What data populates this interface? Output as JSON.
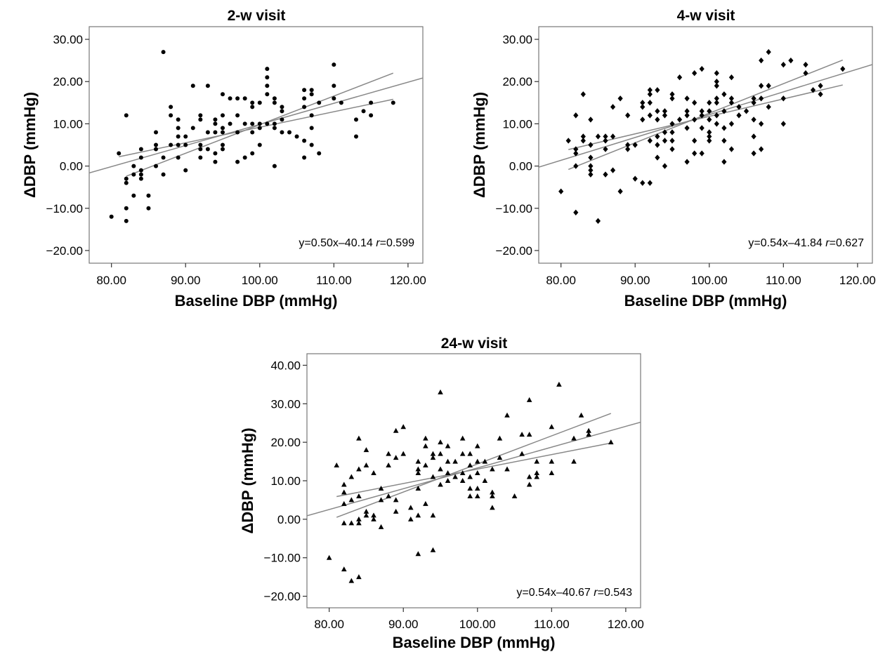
{
  "chart_data": [
    {
      "type": "scatter",
      "title": "2-w visit",
      "xlabel": "Baseline DBP (mmHg)",
      "ylabel": "ΔDBP (mmHg)",
      "xlim": [
        77,
        122
      ],
      "ylim": [
        -23,
        33
      ],
      "xticks": [
        "80.00",
        "90.00",
        "100.00",
        "110.00",
        "120.00"
      ],
      "yticks": [
        "-20.00",
        "-10.00",
        "0.00",
        "10.00",
        "20.00",
        "30.00"
      ],
      "marker": "circle",
      "annotation": {
        "text": "y=0.50x–40.14 ",
        "r_label": "r",
        "r_text": "=0.599"
      },
      "regression": {
        "slope": 0.5,
        "intercept": -40.14
      },
      "ci_lines": [
        {
          "x": [
            82,
            118
          ],
          "y": [
            -2.4,
            22.0
          ]
        },
        {
          "x": [
            81,
            118
          ],
          "y": [
            2.2,
            15.8
          ]
        }
      ],
      "points": [
        [
          80,
          -12
        ],
        [
          81,
          3
        ],
        [
          82,
          12
        ],
        [
          82,
          -3
        ],
        [
          82,
          -4
        ],
        [
          82,
          -10
        ],
        [
          82,
          -13
        ],
        [
          83,
          -2
        ],
        [
          83,
          -7
        ],
        [
          83,
          0
        ],
        [
          84,
          4
        ],
        [
          84,
          2
        ],
        [
          84,
          -1
        ],
        [
          84,
          -2
        ],
        [
          84,
          -3
        ],
        [
          85,
          -7
        ],
        [
          85,
          -10
        ],
        [
          86,
          0
        ],
        [
          86,
          4
        ],
        [
          86,
          5
        ],
        [
          86,
          8
        ],
        [
          87,
          27
        ],
        [
          87,
          2
        ],
        [
          87,
          -2
        ],
        [
          88,
          14
        ],
        [
          88,
          12
        ],
        [
          88,
          5
        ],
        [
          89,
          11
        ],
        [
          89,
          9
        ],
        [
          89,
          7
        ],
        [
          89,
          5
        ],
        [
          89,
          2
        ],
        [
          90,
          7
        ],
        [
          90,
          5
        ],
        [
          90,
          -1
        ],
        [
          91,
          19
        ],
        [
          91,
          9
        ],
        [
          92,
          11
        ],
        [
          92,
          12
        ],
        [
          92,
          5
        ],
        [
          92,
          4
        ],
        [
          92,
          2
        ],
        [
          93,
          19
        ],
        [
          93,
          8
        ],
        [
          93,
          4
        ],
        [
          94,
          11
        ],
        [
          94,
          10
        ],
        [
          94,
          8
        ],
        [
          94,
          3
        ],
        [
          94,
          1
        ],
        [
          95,
          17
        ],
        [
          95,
          12
        ],
        [
          95,
          9
        ],
        [
          95,
          8
        ],
        [
          95,
          5
        ],
        [
          95,
          4
        ],
        [
          96,
          16
        ],
        [
          96,
          10
        ],
        [
          97,
          16
        ],
        [
          97,
          12
        ],
        [
          97,
          8
        ],
        [
          97,
          1
        ],
        [
          98,
          16
        ],
        [
          98,
          10
        ],
        [
          98,
          2
        ],
        [
          99,
          15
        ],
        [
          99,
          14
        ],
        [
          99,
          10
        ],
        [
          99,
          8
        ],
        [
          99,
          3
        ],
        [
          100,
          15
        ],
        [
          100,
          10
        ],
        [
          100,
          9
        ],
        [
          100,
          5
        ],
        [
          101,
          23
        ],
        [
          101,
          21
        ],
        [
          101,
          19
        ],
        [
          101,
          17
        ],
        [
          101,
          10
        ],
        [
          102,
          16
        ],
        [
          102,
          15
        ],
        [
          102,
          10
        ],
        [
          102,
          9
        ],
        [
          102,
          0
        ],
        [
          103,
          14
        ],
        [
          103,
          13
        ],
        [
          103,
          11
        ],
        [
          103,
          8
        ],
        [
          104,
          8
        ],
        [
          105,
          7
        ],
        [
          106,
          18
        ],
        [
          106,
          16
        ],
        [
          106,
          14
        ],
        [
          106,
          6
        ],
        [
          106,
          2
        ],
        [
          107,
          18
        ],
        [
          107,
          17
        ],
        [
          107,
          12
        ],
        [
          107,
          9
        ],
        [
          107,
          5
        ],
        [
          108,
          15
        ],
        [
          108,
          3
        ],
        [
          110,
          24
        ],
        [
          110,
          19
        ],
        [
          110,
          16
        ],
        [
          111,
          15
        ],
        [
          113,
          11
        ],
        [
          113,
          7
        ],
        [
          114,
          13
        ],
        [
          115,
          15
        ],
        [
          115,
          12
        ],
        [
          118,
          15
        ]
      ]
    },
    {
      "type": "scatter",
      "title": "4-w visit",
      "xlabel": "Baseline DBP (mmHg)",
      "ylabel": "ΔDBP (mmHg)",
      "xlim": [
        77,
        122
      ],
      "ylim": [
        -23,
        33
      ],
      "xticks": [
        "80.00",
        "90.00",
        "100.00",
        "110.00",
        "120.00"
      ],
      "yticks": [
        "-20.00",
        "-10.00",
        "0.00",
        "10.00",
        "20.00",
        "30.00"
      ],
      "marker": "diamond",
      "annotation": {
        "text": "y=0.54x–41.84 ",
        "r_label": "r",
        "r_text": "=0.627"
      },
      "regression": {
        "slope": 0.54,
        "intercept": -41.84
      },
      "ci_lines": [
        {
          "x": [
            81,
            118
          ],
          "y": [
            -0.8,
            25.1
          ]
        },
        {
          "x": [
            81,
            118
          ],
          "y": [
            3.9,
            19.2
          ]
        }
      ],
      "points": [
        [
          80,
          -6
        ],
        [
          81,
          6
        ],
        [
          82,
          12
        ],
        [
          82,
          4
        ],
        [
          82,
          3
        ],
        [
          82,
          0
        ],
        [
          82,
          -11
        ],
        [
          83,
          17
        ],
        [
          83,
          7
        ],
        [
          83,
          6
        ],
        [
          84,
          11
        ],
        [
          84,
          5
        ],
        [
          84,
          2
        ],
        [
          84,
          0
        ],
        [
          84,
          -1
        ],
        [
          84,
          -2
        ],
        [
          85,
          7
        ],
        [
          85,
          -13
        ],
        [
          86,
          7
        ],
        [
          86,
          6
        ],
        [
          86,
          4
        ],
        [
          86,
          -2
        ],
        [
          87,
          14
        ],
        [
          87,
          7
        ],
        [
          87,
          -1
        ],
        [
          88,
          16
        ],
        [
          88,
          -6
        ],
        [
          89,
          12
        ],
        [
          89,
          5
        ],
        [
          89,
          4
        ],
        [
          90,
          5
        ],
        [
          90,
          -3
        ],
        [
          91,
          15
        ],
        [
          91,
          14
        ],
        [
          91,
          11
        ],
        [
          91,
          -4
        ],
        [
          92,
          18
        ],
        [
          92,
          17
        ],
        [
          92,
          15
        ],
        [
          92,
          12
        ],
        [
          92,
          6
        ],
        [
          92,
          -4
        ],
        [
          93,
          18
        ],
        [
          93,
          13
        ],
        [
          93,
          11
        ],
        [
          93,
          7
        ],
        [
          93,
          5
        ],
        [
          93,
          2
        ],
        [
          94,
          13
        ],
        [
          94,
          12
        ],
        [
          94,
          8
        ],
        [
          94,
          6
        ],
        [
          94,
          0
        ],
        [
          95,
          17
        ],
        [
          95,
          16
        ],
        [
          95,
          10
        ],
        [
          95,
          8
        ],
        [
          95,
          6
        ],
        [
          95,
          4
        ],
        [
          96,
          21
        ],
        [
          96,
          11
        ],
        [
          97,
          16
        ],
        [
          97,
          13
        ],
        [
          97,
          12
        ],
        [
          97,
          9
        ],
        [
          97,
          1
        ],
        [
          98,
          22
        ],
        [
          98,
          15
        ],
        [
          98,
          11
        ],
        [
          98,
          6
        ],
        [
          98,
          3
        ],
        [
          99,
          23
        ],
        [
          99,
          13
        ],
        [
          99,
          12
        ],
        [
          99,
          9
        ],
        [
          99,
          3
        ],
        [
          100,
          15
        ],
        [
          100,
          13
        ],
        [
          100,
          11
        ],
        [
          100,
          8
        ],
        [
          100,
          7
        ],
        [
          100,
          6
        ],
        [
          101,
          22
        ],
        [
          101,
          20
        ],
        [
          101,
          19
        ],
        [
          101,
          16
        ],
        [
          101,
          15
        ],
        [
          101,
          12
        ],
        [
          101,
          10
        ],
        [
          102,
          17
        ],
        [
          102,
          13
        ],
        [
          102,
          9
        ],
        [
          102,
          6
        ],
        [
          102,
          1
        ],
        [
          103,
          21
        ],
        [
          103,
          16
        ],
        [
          103,
          15
        ],
        [
          103,
          10
        ],
        [
          103,
          4
        ],
        [
          104,
          14
        ],
        [
          104,
          12
        ],
        [
          105,
          13
        ],
        [
          106,
          16
        ],
        [
          106,
          15
        ],
        [
          106,
          11
        ],
        [
          106,
          7
        ],
        [
          106,
          3
        ],
        [
          107,
          25
        ],
        [
          107,
          19
        ],
        [
          107,
          16
        ],
        [
          107,
          10
        ],
        [
          107,
          4
        ],
        [
          108,
          27
        ],
        [
          108,
          19
        ],
        [
          108,
          14
        ],
        [
          110,
          24
        ],
        [
          110,
          16
        ],
        [
          110,
          10
        ],
        [
          111,
          25
        ],
        [
          113,
          24
        ],
        [
          113,
          22
        ],
        [
          114,
          18
        ],
        [
          115,
          19
        ],
        [
          115,
          17
        ],
        [
          118,
          23
        ]
      ]
    },
    {
      "type": "scatter",
      "title": "24-w visit",
      "xlabel": "Baseline DBP (mmHg)",
      "ylabel": "ΔDBP (mmHg)",
      "xlim": [
        77,
        122
      ],
      "ylim": [
        -23,
        43
      ],
      "xticks": [
        "80.00",
        "90.00",
        "100.00",
        "110.00",
        "120.00"
      ],
      "yticks": [
        "-20.00",
        "-10.00",
        "0.00",
        "10.00",
        "20.00",
        "30.00",
        "40.00"
      ],
      "marker": "triangle",
      "annotation": {
        "text": "y=0.54x–40.67 ",
        "r_label": "r",
        "r_text": "=0.543"
      },
      "regression": {
        "slope": 0.54,
        "intercept": -40.67
      },
      "ci_lines": [
        {
          "x": [
            81,
            118
          ],
          "y": [
            0.5,
            27.5
          ]
        },
        {
          "x": [
            81,
            118
          ],
          "y": [
            5.9,
            19.8
          ]
        }
      ],
      "points": [
        [
          80,
          -10
        ],
        [
          81,
          14
        ],
        [
          82,
          9
        ],
        [
          82,
          7
        ],
        [
          82,
          4
        ],
        [
          82,
          -1
        ],
        [
          82,
          -13
        ],
        [
          83,
          11
        ],
        [
          83,
          5
        ],
        [
          83,
          -1
        ],
        [
          83,
          -16
        ],
        [
          84,
          21
        ],
        [
          84,
          13
        ],
        [
          84,
          6
        ],
        [
          84,
          0
        ],
        [
          84,
          -1
        ],
        [
          84,
          -15
        ],
        [
          85,
          18
        ],
        [
          85,
          14
        ],
        [
          85,
          2
        ],
        [
          85,
          1
        ],
        [
          86,
          12
        ],
        [
          86,
          1
        ],
        [
          86,
          0
        ],
        [
          87,
          8
        ],
        [
          87,
          5
        ],
        [
          87,
          -2
        ],
        [
          88,
          17
        ],
        [
          88,
          14
        ],
        [
          88,
          6
        ],
        [
          89,
          23
        ],
        [
          89,
          16
        ],
        [
          89,
          5
        ],
        [
          89,
          2
        ],
        [
          90,
          24
        ],
        [
          90,
          17
        ],
        [
          91,
          3
        ],
        [
          91,
          0
        ],
        [
          92,
          15
        ],
        [
          92,
          13
        ],
        [
          92,
          12
        ],
        [
          92,
          8
        ],
        [
          92,
          1
        ],
        [
          92,
          -9
        ],
        [
          93,
          21
        ],
        [
          93,
          19
        ],
        [
          93,
          14
        ],
        [
          93,
          4
        ],
        [
          94,
          17
        ],
        [
          94,
          16
        ],
        [
          94,
          11
        ],
        [
          94,
          1
        ],
        [
          94,
          -8
        ],
        [
          95,
          33
        ],
        [
          95,
          20
        ],
        [
          95,
          17
        ],
        [
          95,
          13
        ],
        [
          95,
          9
        ],
        [
          96,
          19
        ],
        [
          96,
          15
        ],
        [
          96,
          12
        ],
        [
          96,
          10
        ],
        [
          97,
          15
        ],
        [
          97,
          11
        ],
        [
          98,
          21
        ],
        [
          98,
          17
        ],
        [
          98,
          12
        ],
        [
          98,
          10
        ],
        [
          99,
          17
        ],
        [
          99,
          14
        ],
        [
          99,
          11
        ],
        [
          99,
          8
        ],
        [
          99,
          6
        ],
        [
          100,
          19
        ],
        [
          100,
          15
        ],
        [
          100,
          12
        ],
        [
          100,
          8
        ],
        [
          100,
          6
        ],
        [
          101,
          15
        ],
        [
          101,
          10
        ],
        [
          102,
          13
        ],
        [
          102,
          7
        ],
        [
          102,
          6
        ],
        [
          102,
          3
        ],
        [
          103,
          21
        ],
        [
          103,
          16
        ],
        [
          104,
          27
        ],
        [
          104,
          13
        ],
        [
          105,
          6
        ],
        [
          106,
          22
        ],
        [
          106,
          17
        ],
        [
          107,
          31
        ],
        [
          107,
          22
        ],
        [
          107,
          11
        ],
        [
          107,
          9
        ],
        [
          108,
          15
        ],
        [
          108,
          12
        ],
        [
          108,
          11
        ],
        [
          110,
          24
        ],
        [
          110,
          15
        ],
        [
          110,
          12
        ],
        [
          111,
          35
        ],
        [
          113,
          21
        ],
        [
          113,
          15
        ],
        [
          114,
          27
        ],
        [
          115,
          23
        ],
        [
          115,
          22
        ],
        [
          118,
          20
        ]
      ]
    }
  ]
}
